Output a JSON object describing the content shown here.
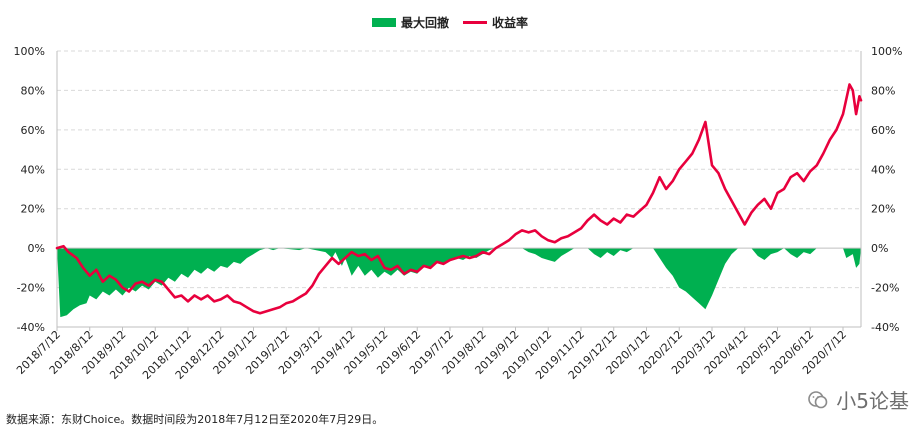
{
  "legend": {
    "drawdown_label": "最大回撤",
    "return_label": "收益率"
  },
  "source_note": "数据来源：东财Choice。数据时间段为2018年7月12日至2020年7月29日。",
  "watermark": "小5论基",
  "colors": {
    "drawdown": "#00b050",
    "return": "#e8003d",
    "grid": "#d9d9d9",
    "axis": "#bfbfbf"
  },
  "chart_data": {
    "type": "line+area",
    "title": "",
    "xlabel": "",
    "ylabel": "",
    "ylim": [
      -40,
      100
    ],
    "y_ticks": [
      "100%",
      "80%",
      "60%",
      "40%",
      "20%",
      "0%",
      "-20%",
      "-40%"
    ],
    "y_tick_values": [
      100,
      80,
      60,
      40,
      20,
      0,
      -20,
      -40
    ],
    "grid": true,
    "legend_position": "top-center",
    "x_tick_labels": [
      "2018/7/12",
      "2018/8/12",
      "2018/9/12",
      "2018/10/12",
      "2018/11/12",
      "2018/12/12",
      "2019/1/12",
      "2019/2/12",
      "2019/3/12",
      "2019/4/12",
      "2019/5/12",
      "2019/6/12",
      "2019/7/12",
      "2019/8/12",
      "2019/9/12",
      "2019/10/12",
      "2019/11/12",
      "2019/12/12",
      "2020/1/12",
      "2020/2/12",
      "2020/3/12",
      "2020/4/12",
      "2020/5/12",
      "2020/6/12",
      "2020/7/12"
    ],
    "x_range": [
      0,
      24.55
    ],
    "series": [
      {
        "name": "收益率",
        "style": "line",
        "points": [
          [
            0,
            0
          ],
          [
            0.2,
            1
          ],
          [
            0.35,
            -2
          ],
          [
            0.6,
            -5
          ],
          [
            0.8,
            -10
          ],
          [
            1.0,
            -14
          ],
          [
            1.2,
            -11
          ],
          [
            1.4,
            -17
          ],
          [
            1.6,
            -14
          ],
          [
            1.8,
            -16
          ],
          [
            2.0,
            -20
          ],
          [
            2.2,
            -22
          ],
          [
            2.4,
            -18
          ],
          [
            2.6,
            -17
          ],
          [
            2.8,
            -19
          ],
          [
            3.0,
            -16
          ],
          [
            3.2,
            -17
          ],
          [
            3.4,
            -21
          ],
          [
            3.6,
            -25
          ],
          [
            3.8,
            -24
          ],
          [
            4.0,
            -27
          ],
          [
            4.2,
            -24
          ],
          [
            4.4,
            -26
          ],
          [
            4.6,
            -24
          ],
          [
            4.8,
            -27
          ],
          [
            5.0,
            -26
          ],
          [
            5.2,
            -24
          ],
          [
            5.4,
            -27
          ],
          [
            5.6,
            -28
          ],
          [
            5.8,
            -30
          ],
          [
            6.0,
            -32
          ],
          [
            6.2,
            -33
          ],
          [
            6.4,
            -32
          ],
          [
            6.6,
            -31
          ],
          [
            6.8,
            -30
          ],
          [
            7.0,
            -28
          ],
          [
            7.2,
            -27
          ],
          [
            7.4,
            -25
          ],
          [
            7.6,
            -23
          ],
          [
            7.8,
            -19
          ],
          [
            8.0,
            -13
          ],
          [
            8.2,
            -9
          ],
          [
            8.4,
            -5
          ],
          [
            8.6,
            -8
          ],
          [
            8.8,
            -5
          ],
          [
            9.0,
            -2
          ],
          [
            9.2,
            -4
          ],
          [
            9.4,
            -3
          ],
          [
            9.6,
            -6
          ],
          [
            9.8,
            -4
          ],
          [
            10.0,
            -10
          ],
          [
            10.2,
            -11
          ],
          [
            10.4,
            -9
          ],
          [
            10.6,
            -13
          ],
          [
            10.8,
            -11
          ],
          [
            11.0,
            -12
          ],
          [
            11.2,
            -9
          ],
          [
            11.4,
            -10
          ],
          [
            11.6,
            -7
          ],
          [
            11.8,
            -8
          ],
          [
            12.0,
            -6
          ],
          [
            12.2,
            -5
          ],
          [
            12.4,
            -4
          ],
          [
            12.6,
            -5
          ],
          [
            12.8,
            -4
          ],
          [
            13.0,
            -2
          ],
          [
            13.2,
            -3
          ],
          [
            13.4,
            0
          ],
          [
            13.6,
            2
          ],
          [
            13.8,
            4
          ],
          [
            14.0,
            7
          ],
          [
            14.2,
            9
          ],
          [
            14.4,
            8
          ],
          [
            14.6,
            9
          ],
          [
            14.8,
            6
          ],
          [
            15.0,
            4
          ],
          [
            15.2,
            3
          ],
          [
            15.4,
            5
          ],
          [
            15.6,
            6
          ],
          [
            15.8,
            8
          ],
          [
            16.0,
            10
          ],
          [
            16.2,
            14
          ],
          [
            16.4,
            17
          ],
          [
            16.6,
            14
          ],
          [
            16.8,
            12
          ],
          [
            17.0,
            15
          ],
          [
            17.2,
            13
          ],
          [
            17.4,
            17
          ],
          [
            17.6,
            16
          ],
          [
            17.8,
            19
          ],
          [
            18.0,
            22
          ],
          [
            18.2,
            28
          ],
          [
            18.4,
            36
          ],
          [
            18.6,
            30
          ],
          [
            18.8,
            34
          ],
          [
            19.0,
            40
          ],
          [
            19.2,
            44
          ],
          [
            19.4,
            48
          ],
          [
            19.6,
            55
          ],
          [
            19.8,
            64
          ],
          [
            20.0,
            42
          ],
          [
            20.2,
            38
          ],
          [
            20.4,
            30
          ],
          [
            20.6,
            24
          ],
          [
            20.8,
            18
          ],
          [
            21.0,
            12
          ],
          [
            21.2,
            18
          ],
          [
            21.4,
            22
          ],
          [
            21.6,
            25
          ],
          [
            21.8,
            20
          ],
          [
            22.0,
            28
          ],
          [
            22.2,
            30
          ],
          [
            22.4,
            36
          ],
          [
            22.6,
            38
          ],
          [
            22.8,
            34
          ],
          [
            23.0,
            39
          ],
          [
            23.2,
            42
          ],
          [
            23.4,
            48
          ],
          [
            23.6,
            55
          ],
          [
            23.8,
            60
          ],
          [
            24.0,
            68
          ],
          [
            24.2,
            83
          ],
          [
            24.3,
            80
          ],
          [
            24.4,
            68
          ],
          [
            24.5,
            77
          ],
          [
            24.55,
            75
          ]
        ]
      },
      {
        "name": "最大回撤",
        "style": "area",
        "points": [
          [
            0,
            0
          ],
          [
            0.1,
            -35
          ],
          [
            0.3,
            -34
          ],
          [
            0.5,
            -31
          ],
          [
            0.7,
            -29
          ],
          [
            0.9,
            -28
          ],
          [
            1.0,
            -24
          ],
          [
            1.2,
            -26
          ],
          [
            1.4,
            -22
          ],
          [
            1.6,
            -24
          ],
          [
            1.8,
            -21
          ],
          [
            2.0,
            -24
          ],
          [
            2.2,
            -20
          ],
          [
            2.4,
            -22
          ],
          [
            2.6,
            -19
          ],
          [
            2.8,
            -21
          ],
          [
            3.0,
            -17
          ],
          [
            3.2,
            -19
          ],
          [
            3.4,
            -15
          ],
          [
            3.6,
            -17
          ],
          [
            3.8,
            -13
          ],
          [
            4.0,
            -15
          ],
          [
            4.2,
            -11
          ],
          [
            4.4,
            -13
          ],
          [
            4.6,
            -10
          ],
          [
            4.8,
            -12
          ],
          [
            5.0,
            -9
          ],
          [
            5.2,
            -10
          ],
          [
            5.4,
            -7
          ],
          [
            5.6,
            -8
          ],
          [
            5.8,
            -5
          ],
          [
            6.0,
            -3
          ],
          [
            6.2,
            -1
          ],
          [
            6.4,
            0
          ],
          [
            6.6,
            -1
          ],
          [
            6.8,
            0
          ],
          [
            7.4,
            -1
          ],
          [
            7.6,
            0
          ],
          [
            8.2,
            -2
          ],
          [
            8.4,
            -5
          ],
          [
            8.5,
            -2
          ],
          [
            8.7,
            -9
          ],
          [
            8.8,
            -5
          ],
          [
            9.0,
            -14
          ],
          [
            9.2,
            -9
          ],
          [
            9.4,
            -14
          ],
          [
            9.6,
            -11
          ],
          [
            9.8,
            -15
          ],
          [
            10.0,
            -12
          ],
          [
            10.2,
            -14
          ],
          [
            10.4,
            -11
          ],
          [
            10.6,
            -14
          ],
          [
            10.8,
            -12
          ],
          [
            11.0,
            -13
          ],
          [
            11.2,
            -9
          ],
          [
            11.4,
            -10
          ],
          [
            11.6,
            -7
          ],
          [
            11.8,
            -8
          ],
          [
            12.0,
            -6
          ],
          [
            12.2,
            -5
          ],
          [
            12.4,
            -6
          ],
          [
            12.6,
            -4
          ],
          [
            12.8,
            -5
          ],
          [
            13.0,
            -3
          ],
          [
            13.2,
            -1
          ],
          [
            13.4,
            0
          ],
          [
            14.2,
            0
          ],
          [
            14.4,
            -2
          ],
          [
            14.6,
            -3
          ],
          [
            14.8,
            -5
          ],
          [
            15.0,
            -6
          ],
          [
            15.2,
            -7
          ],
          [
            15.4,
            -4
          ],
          [
            15.6,
            -2
          ],
          [
            15.8,
            0
          ],
          [
            16.2,
            0
          ],
          [
            16.4,
            -3
          ],
          [
            16.6,
            -5
          ],
          [
            16.8,
            -2
          ],
          [
            17.0,
            -4
          ],
          [
            17.2,
            -1
          ],
          [
            17.4,
            -2
          ],
          [
            17.6,
            0
          ],
          [
            18.2,
            0
          ],
          [
            18.4,
            -5
          ],
          [
            18.6,
            -10
          ],
          [
            18.8,
            -14
          ],
          [
            19.0,
            -20
          ],
          [
            19.2,
            -22
          ],
          [
            19.4,
            -25
          ],
          [
            19.6,
            -28
          ],
          [
            19.8,
            -31
          ],
          [
            20.0,
            -24
          ],
          [
            20.2,
            -16
          ],
          [
            20.4,
            -8
          ],
          [
            20.6,
            -3
          ],
          [
            20.8,
            0
          ],
          [
            21.2,
            0
          ],
          [
            21.4,
            -4
          ],
          [
            21.6,
            -6
          ],
          [
            21.8,
            -3
          ],
          [
            22.0,
            -2
          ],
          [
            22.2,
            0
          ],
          [
            22.4,
            -3
          ],
          [
            22.6,
            -5
          ],
          [
            22.8,
            -2
          ],
          [
            23.0,
            -3
          ],
          [
            23.2,
            0
          ],
          [
            24.0,
            0
          ],
          [
            24.1,
            -5
          ],
          [
            24.3,
            -3
          ],
          [
            24.4,
            -10
          ],
          [
            24.5,
            -8
          ],
          [
            24.55,
            0
          ]
        ]
      }
    ]
  }
}
